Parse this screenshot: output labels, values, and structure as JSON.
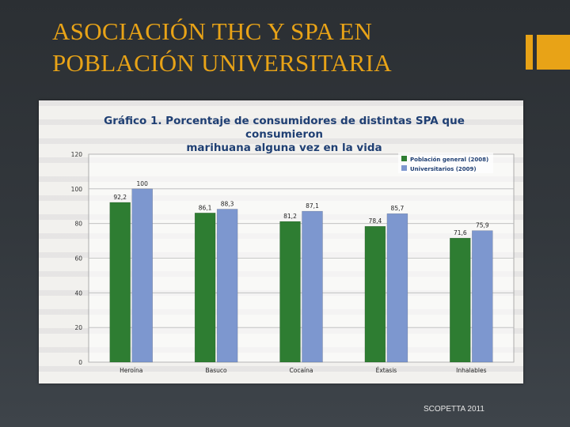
{
  "slide": {
    "title_line1": "ASOCIACIÓN THC Y SPA EN",
    "title_line2": "POBLACIÓN UNIVERSITARIA",
    "footer": "SCOPETTA 2011",
    "accent_color": "#e8a317"
  },
  "chart_data": {
    "type": "bar",
    "title": "Gráfico 1. Porcentaje de consumidores de distintas SPA que consumieron marihuana alguna vez en la vida",
    "title_line1": "Gráfico 1. Porcentaje de consumidores de distintas SPA que consumieron",
    "title_line2": "marihuana alguna vez en la vida",
    "categories": [
      "Heroína",
      "Basuco",
      "Cocaína",
      "Éxtasis",
      "Inhalables"
    ],
    "series": [
      {
        "name": "Población general (2008)",
        "color": "#2e7d32",
        "values": [
          92.2,
          86.1,
          81.2,
          78.4,
          71.6
        ],
        "labels": [
          "92,2",
          "86,1",
          "81,2",
          "78,4",
          "71,6"
        ]
      },
      {
        "name": "Universitarios (2009)",
        "color": "#7d97cf",
        "values": [
          100,
          88.3,
          87.1,
          85.7,
          75.9
        ],
        "labels": [
          "100",
          "88,3",
          "87,1",
          "85,7",
          "75,9"
        ]
      }
    ],
    "ylim": [
      0,
      120
    ],
    "yticks": [
      "0",
      "20",
      "40",
      "60",
      "80",
      "100",
      "120"
    ],
    "grid": true,
    "legend_position": "top-right"
  }
}
